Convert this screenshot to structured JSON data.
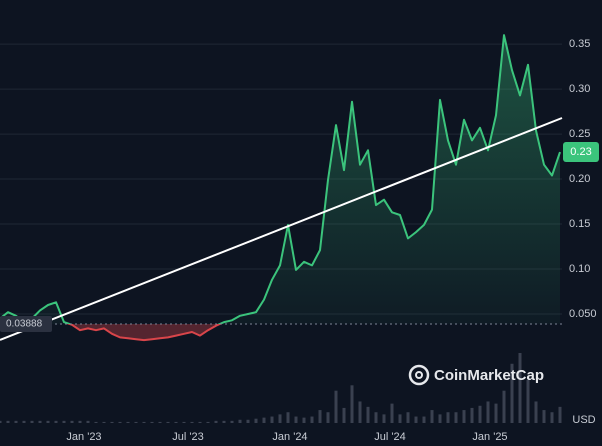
{
  "chart_data": {
    "type": "line",
    "values": [
      0.045,
      0.052,
      0.048,
      0.041,
      0.045,
      0.054,
      0.06,
      0.063,
      0.041,
      0.038,
      0.032,
      0.034,
      0.032,
      0.034,
      0.028,
      0.024,
      0.023,
      0.022,
      0.021,
      0.022,
      0.023,
      0.024,
      0.026,
      0.028,
      0.03,
      0.026,
      0.032,
      0.037,
      0.041,
      0.043,
      0.048,
      0.05,
      0.052,
      0.066,
      0.088,
      0.104,
      0.149,
      0.099,
      0.108,
      0.104,
      0.121,
      0.199,
      0.26,
      0.21,
      0.286,
      0.216,
      0.232,
      0.171,
      0.177,
      0.163,
      0.16,
      0.134,
      0.141,
      0.149,
      0.166,
      0.288,
      0.243,
      0.216,
      0.266,
      0.243,
      0.257,
      0.232,
      0.271,
      0.36,
      0.321,
      0.293,
      0.327,
      0.254,
      0.216,
      0.204,
      0.23
    ],
    "volume": [
      2,
      2,
      2,
      2,
      2,
      2,
      2,
      2,
      2,
      2,
      2,
      2,
      1,
      1,
      1,
      1,
      1,
      1,
      1,
      1,
      1,
      1,
      1,
      1,
      1,
      1,
      1,
      2,
      2,
      2,
      3,
      3,
      4,
      5,
      6,
      8,
      10,
      6,
      5,
      6,
      12,
      10,
      30,
      14,
      35,
      20,
      15,
      10,
      8,
      18,
      8,
      10,
      6,
      6,
      12,
      8,
      10,
      10,
      12,
      14,
      16,
      20,
      18,
      30,
      55,
      65,
      40,
      20,
      12,
      10,
      15
    ],
    "baseline": 0.03888,
    "xlim": [
      0,
      70
    ],
    "xticks": [
      {
        "value": 10.5,
        "label": "Jan '23"
      },
      {
        "value": 23.5,
        "label": "Jul '23"
      },
      {
        "value": 36.25,
        "label": "Jan '24"
      },
      {
        "value": 48.75,
        "label": "Jul '24"
      },
      {
        "value": 61.25,
        "label": "Jan '25"
      }
    ],
    "ylim": [
      0,
      0.399
    ],
    "yticks": [
      {
        "value": 0.05,
        "label": "0.050"
      },
      {
        "value": 0.1,
        "label": "0.10"
      },
      0.15,
      {
        "value": 0.2,
        "label": "0.20"
      },
      0.25,
      {
        "value": 0.3,
        "label": "0.30"
      },
      0.35
    ],
    "grid": true,
    "color": "#3bc47c",
    "down_color": "#d9454a",
    "currency": "USD",
    "watermark": "CoinMarketCap"
  }
}
